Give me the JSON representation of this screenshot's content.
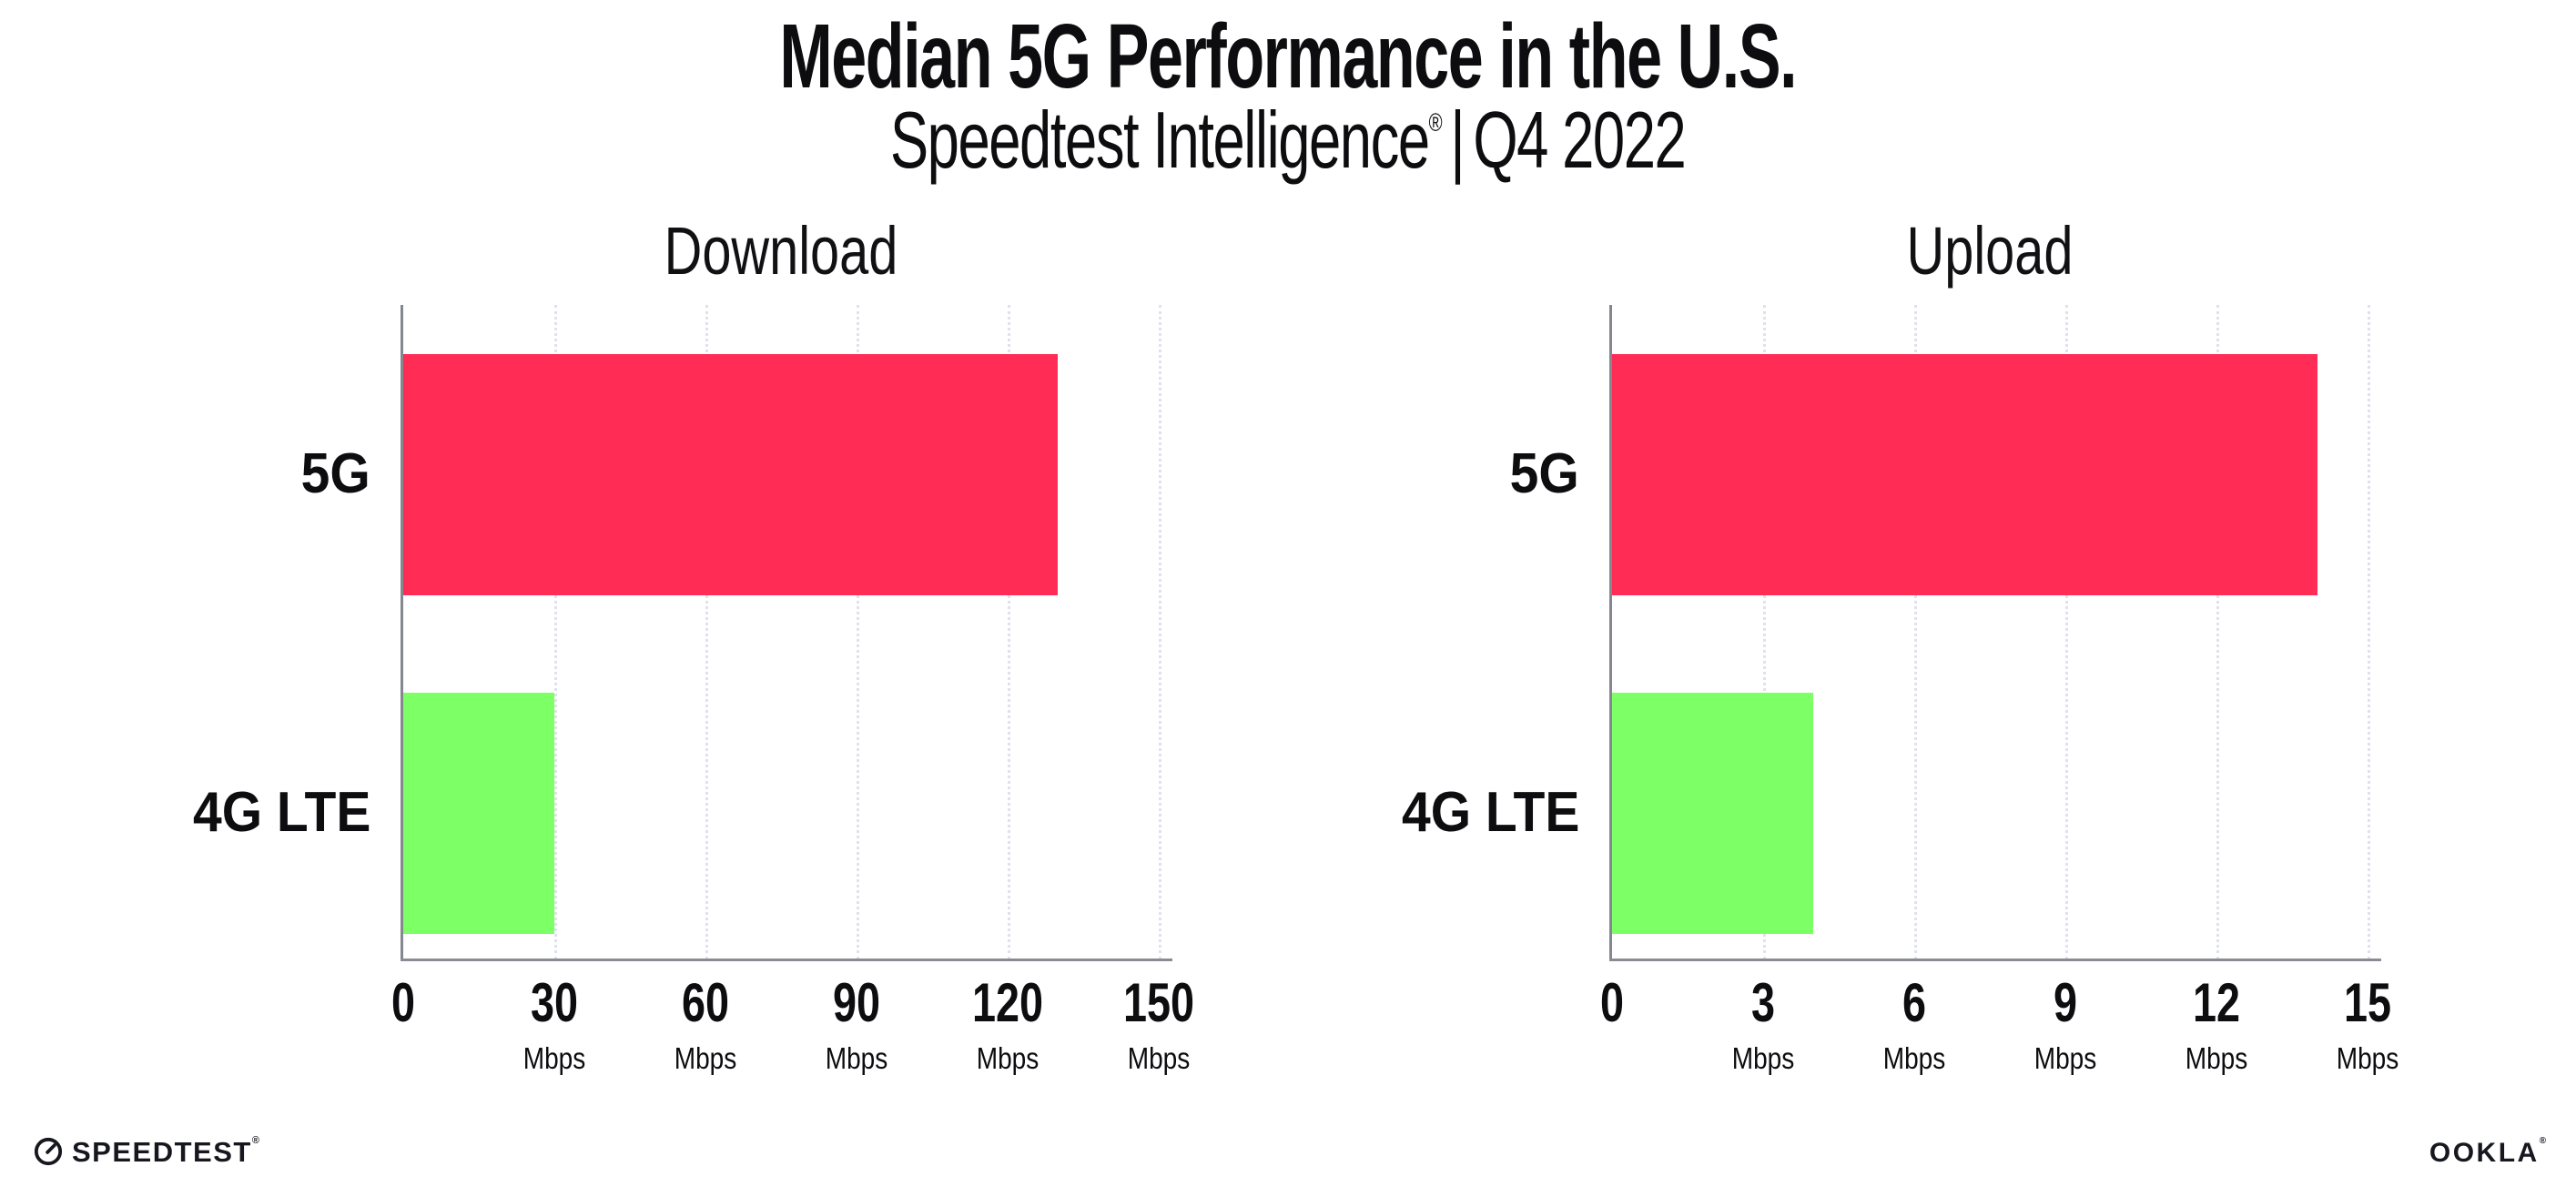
{
  "header": {
    "title": "Median 5G Performance in the U.S.",
    "subtitle_brand": "Speedtest Intelligence",
    "subtitle_reg": "®",
    "subtitle_divider": "|",
    "subtitle_period": "Q4 2022"
  },
  "chart_data": [
    {
      "type": "bar",
      "orientation": "horizontal",
      "title": "Download",
      "categories": [
        "5G",
        "4G LTE"
      ],
      "values": [
        130,
        30
      ],
      "unit": "Mbps",
      "xlim": [
        0,
        150
      ],
      "xticks": [
        0,
        30,
        60,
        90,
        120,
        150
      ],
      "grid": "vertical-dotted",
      "legend": "none",
      "bar_colors": [
        "#FF2D55",
        "#7DFF66"
      ]
    },
    {
      "type": "bar",
      "orientation": "horizontal",
      "title": "Upload",
      "categories": [
        "5G",
        "4G LTE"
      ],
      "values": [
        14,
        4
      ],
      "unit": "Mbps",
      "xlim": [
        0,
        15
      ],
      "xticks": [
        0,
        3,
        6,
        9,
        12,
        15
      ],
      "grid": "vertical-dotted",
      "legend": "none",
      "bar_colors": [
        "#FF2D55",
        "#7DFF66"
      ]
    }
  ],
  "colors": {
    "bar_5g": "#FF2D55",
    "bar_4g_lte": "#7DFF66",
    "axis": "#8A8C93",
    "gridline": "#DFE2EC",
    "text": "#0D0D10"
  },
  "footer": {
    "speedtest_label": "SPEEDTEST",
    "speedtest_reg": "®",
    "ookla_label": "OOKLA",
    "ookla_reg": "®"
  }
}
